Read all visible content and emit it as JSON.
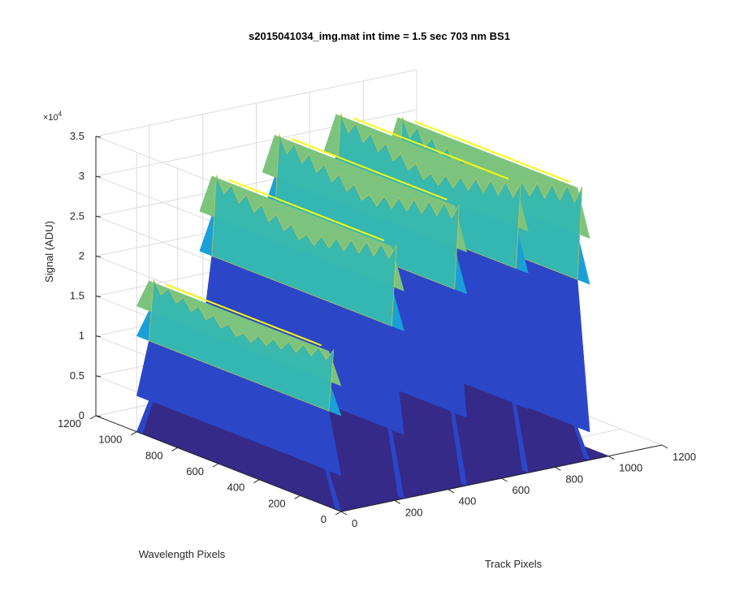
{
  "chart_data": {
    "type": "surface",
    "title": "s2015041034_img.mat int time = 1.5 sec  703 nm BS1",
    "xlabel": "Track Pixels",
    "ylabel": "Wavelength Pixels",
    "zlabel": "Signal (ADU)",
    "z_exponent_label": "×10",
    "z_exponent_power": "4",
    "x_range": [
      0,
      1200
    ],
    "y_range": [
      0,
      1200
    ],
    "z_range": [
      0,
      35000
    ],
    "x_ticks": [
      0,
      200,
      400,
      600,
      800,
      1000,
      1200
    ],
    "y_ticks": [
      0,
      200,
      400,
      600,
      800,
      1000,
      1200
    ],
    "z_ticks": [
      0,
      5000,
      10000,
      15000,
      20000,
      25000,
      30000,
      35000
    ],
    "x_tick_labels": [
      "0",
      "200",
      "400",
      "600",
      "800",
      "1000",
      "1200"
    ],
    "y_tick_labels": [
      "0",
      "200",
      "400",
      "600",
      "800",
      "1000",
      "1200"
    ],
    "z_tick_labels": [
      "0",
      "0.5",
      "1",
      "1.5",
      "2",
      "2.5",
      "3",
      "3.5"
    ],
    "baseline_signal": 0,
    "track_spans": [
      {
        "x_start": 0,
        "x_end": 35,
        "y_start": 0,
        "y_end": 1000
      },
      {
        "x_start": 235,
        "x_end": 270,
        "y_start": 0,
        "y_end": 1000
      },
      {
        "x_start": 470,
        "x_end": 505,
        "y_start": 0,
        "y_end": 1000
      },
      {
        "x_start": 700,
        "x_end": 735,
        "y_start": 0,
        "y_end": 1000
      },
      {
        "x_start": 930,
        "x_end": 965,
        "y_start": 0,
        "y_end": 1000
      }
    ],
    "track_peaks": [
      19500,
      31000,
      34500,
      35500,
      33500
    ],
    "track_mid_levels": [
      12000,
      21000,
      24000,
      25000,
      22000
    ],
    "track_low_levels": [
      4500,
      8000,
      8500,
      8000,
      3500
    ],
    "grid": true,
    "colormap": [
      "#352a87",
      "#2c46c8",
      "#1f7be0",
      "#1aa0d8",
      "#36b8b0",
      "#7cc47e",
      "#c8c24a",
      "#f9fb0e"
    ],
    "grid_color": "#dcdcdc",
    "axis_color": "#262626",
    "floor_color": "#352a87"
  }
}
